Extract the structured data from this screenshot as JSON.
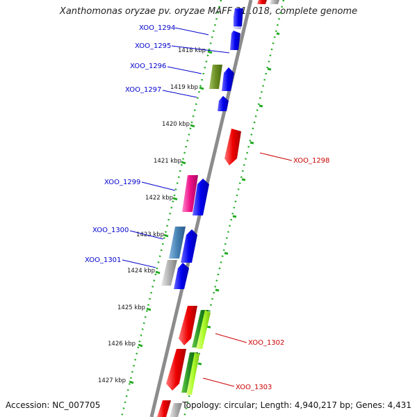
{
  "title": "Xanthomonas oryzae pv. oryzae MAFF 311018, complete genome",
  "accession": "Accession: NC_007705",
  "summary": "Topology: circular; Length: 4,940,217 bp; Genes: 4,431",
  "colors": {
    "backbone": "#8c8c8c",
    "tick_outer": "#22aa22",
    "tick_inner": "#22aa22",
    "label_left": "#0000cc",
    "label_right": "#cc0000"
  },
  "kbp_labels": [
    "1418 kbp",
    "1419 kbp",
    "1420 kbp",
    "1421 kbp",
    "1422 kbp",
    "1423 kbp",
    "1424 kbp",
    "1425 kbp",
    "1426 kbp",
    "1427 kbp"
  ],
  "genes": [
    {
      "name": "XOO_1294",
      "strand": "minus",
      "color": "#0000ee"
    },
    {
      "name": "XOO_1295",
      "strand": "minus",
      "color": "#0000ee"
    },
    {
      "name": "XOO_1296",
      "strand": "minus",
      "color": "#0000ee"
    },
    {
      "name": "XOO_1297",
      "strand": "minus",
      "color": "#0000ee"
    },
    {
      "name": "XOO_1298",
      "strand": "plus",
      "color": "#ee0000"
    },
    {
      "name": "XOO_1299",
      "strand": "minus",
      "color": "#0000ee"
    },
    {
      "name": "XOO_1300",
      "strand": "minus",
      "color": "#0000ee"
    },
    {
      "name": "XOO_1301",
      "strand": "minus",
      "color": "#0000ee"
    },
    {
      "name": "XOO_1302",
      "strand": "plus",
      "color": "#ee0000"
    },
    {
      "name": "XOO_1303",
      "strand": "plus",
      "color": "#ee0000"
    }
  ]
}
